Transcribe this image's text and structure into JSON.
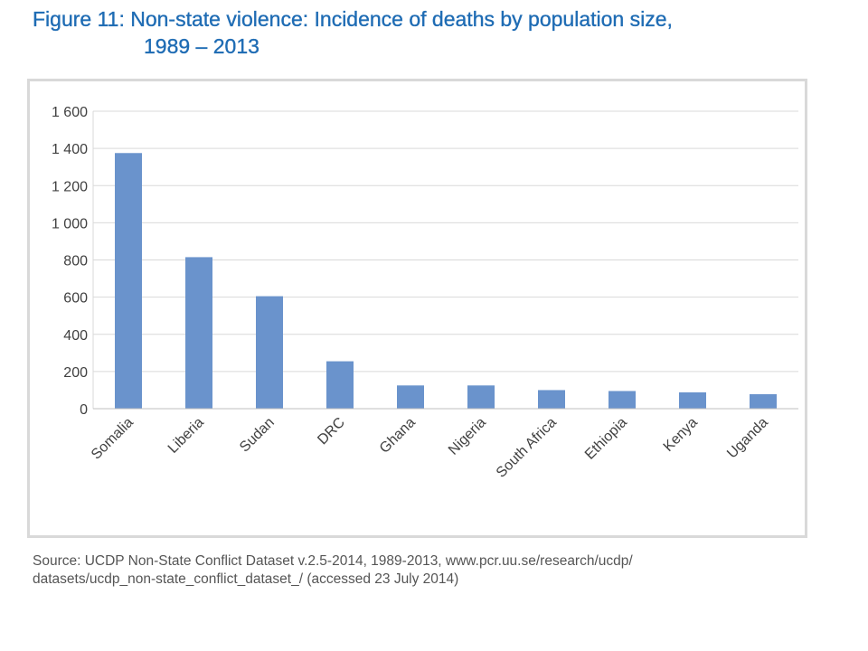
{
  "title": {
    "line1": "Figure 11: Non-state violence: Incidence of deaths by population size,",
    "line2": "1989 – 2013"
  },
  "source": {
    "line1": "Source: UCDP Non-State Conflict Dataset v.2.5-2014, 1989-2013, www.pcr.uu.se/research/ucdp/",
    "line2": "datasets/ucdp_non-state_conflict_dataset_/ (accessed 23 July 2014)"
  },
  "chart_data": {
    "type": "bar",
    "title": "Figure 11: Non-state violence: Incidence of deaths by population size, 1989 – 2013",
    "xlabel": "",
    "ylabel": "",
    "ylim": [
      0,
      1600
    ],
    "yticks": [
      0,
      200,
      400,
      600,
      800,
      1000,
      1200,
      1400,
      1600
    ],
    "ytick_labels": [
      "0",
      "200",
      "400",
      "600",
      "800",
      "1 000",
      "1 200",
      "1 400",
      "1 600"
    ],
    "grid": true,
    "legend": "none",
    "bar_color": "#6a93cc",
    "categories": [
      "Somalia",
      "Liberia",
      "Sudan",
      "DRC",
      "Ghana",
      "Nigeria",
      "South Africa",
      "Ethiopia",
      "Kenya",
      "Uganda"
    ],
    "values": [
      1375,
      815,
      605,
      255,
      125,
      125,
      100,
      95,
      88,
      78
    ]
  }
}
